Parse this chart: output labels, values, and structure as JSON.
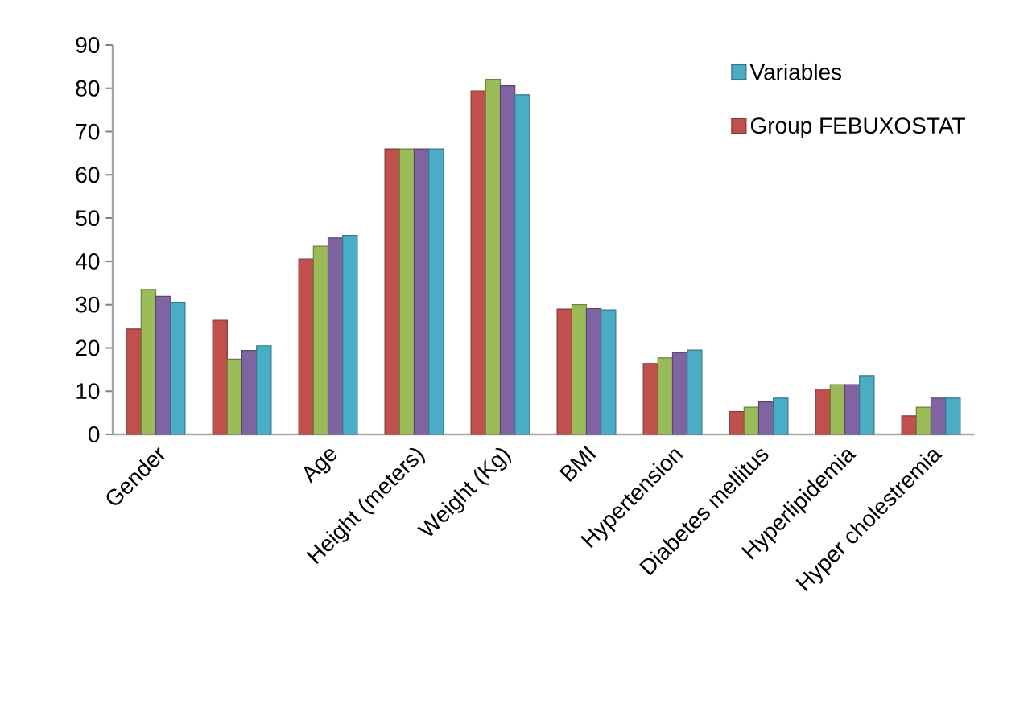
{
  "chart_data": {
    "type": "bar",
    "categories": [
      "Gender",
      null,
      "Age",
      "Height (meters)",
      "Weight (Kg)",
      "BMI",
      "Hypertension",
      "Diabetes mellitus",
      "Hyperlipidemia",
      "Hyper cholestremia"
    ],
    "series": [
      {
        "name": "Group FEBUXOSTAT",
        "color": "#c0504d",
        "values": [
          24.4,
          26.4,
          40.5,
          66,
          79.4,
          29,
          16.4,
          5.3,
          10.5,
          4.3
        ]
      },
      {
        "color": "#9bbb59",
        "values": [
          33.5,
          17.4,
          43.5,
          66,
          82.1,
          30,
          17.7,
          6.3,
          11.5,
          6.3
        ]
      },
      {
        "color": "#8064a2",
        "values": [
          31.9,
          19.4,
          45.4,
          66,
          80.6,
          29.1,
          18.9,
          7.5,
          11.5,
          8.4
        ]
      },
      {
        "name": "Variables",
        "color": "#4bacc6",
        "values": [
          30.4,
          20.5,
          46,
          66,
          78.5,
          28.8,
          19.5,
          8.4,
          13.6,
          8.4
        ]
      }
    ],
    "ylim": [
      0,
      90
    ],
    "yticks": [
      0,
      10,
      20,
      30,
      40,
      50,
      60,
      70,
      80,
      90
    ],
    "legend": "top right",
    "grid": false
  }
}
